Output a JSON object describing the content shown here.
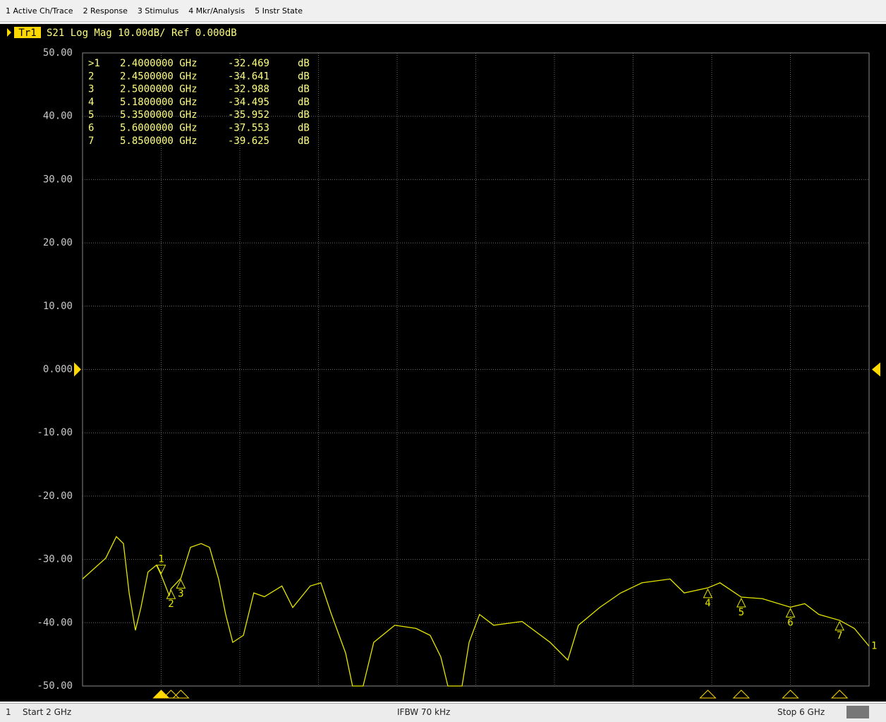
{
  "menu": [
    "1 Active Ch/Trace",
    "2 Response",
    "3 Stimulus",
    "4 Mkr/Analysis",
    "5 Instr State"
  ],
  "status_bar": {
    "channel": "1",
    "start": "Start 2 GHz",
    "ifbw": "IFBW 70 kHz",
    "stop": "Stop 6 GHz"
  },
  "chart_data": {
    "type": "line",
    "trace_name": "Tr1",
    "title": "S21 Log Mag 10.00dB/ Ref 0.000dB",
    "xlim": [
      2,
      6
    ],
    "ylim": [
      -50,
      50
    ],
    "xticks": [
      2,
      2.4,
      2.8,
      3.2,
      3.6,
      4,
      4.4,
      4.8,
      5.2,
      5.6,
      6
    ],
    "yticks": [
      {
        "value": 50,
        "label": "50.00"
      },
      {
        "value": 40,
        "label": "40.00"
      },
      {
        "value": 30,
        "label": "30.00"
      },
      {
        "value": 20,
        "label": "20.00"
      },
      {
        "value": 10,
        "label": "10.00"
      },
      {
        "value": 0,
        "label": "0.000"
      },
      {
        "value": -10,
        "label": "-10.00"
      },
      {
        "value": -20,
        "label": "-20.00"
      },
      {
        "value": -30,
        "label": "-30.00"
      },
      {
        "value": -40,
        "label": "-40.00"
      },
      {
        "value": -50,
        "label": "-50.00"
      }
    ],
    "grid": true,
    "ref_level": 0,
    "series": [
      {
        "name": "1",
        "color": "#e6e600",
        "x": [
          2.0,
          2.118,
          2.172,
          2.208,
          2.237,
          2.269,
          2.297,
          2.333,
          2.376,
          2.4,
          2.441,
          2.45,
          2.5,
          2.549,
          2.603,
          2.646,
          2.692,
          2.728,
          2.764,
          2.818,
          2.871,
          2.925,
          3.014,
          3.069,
          3.158,
          3.212,
          3.266,
          3.338,
          3.373,
          3.427,
          3.481,
          3.588,
          3.696,
          3.768,
          3.822,
          3.858,
          3.93,
          3.966,
          4.019,
          4.091,
          4.235,
          4.378,
          4.468,
          4.522,
          4.63,
          4.737,
          4.845,
          4.988,
          5.06,
          5.18,
          5.242,
          5.35,
          5.457,
          5.6,
          5.673,
          5.745,
          5.85,
          5.925,
          6.0
        ],
        "values": [
          -33.1,
          -29.8,
          -26.4,
          -27.5,
          -35.3,
          -41.2,
          -37.6,
          -32.0,
          -30.9,
          -32.469,
          -35.7,
          -34.641,
          -32.988,
          -28.1,
          -27.5,
          -28.1,
          -33.1,
          -38.7,
          -43.1,
          -42.0,
          -35.3,
          -35.9,
          -34.2,
          -37.6,
          -34.2,
          -33.7,
          -38.7,
          -44.8,
          -50,
          -50,
          -43.1,
          -40.4,
          -40.9,
          -42.0,
          -45.4,
          -50,
          -50,
          -43.1,
          -38.7,
          -40.4,
          -39.8,
          -43.1,
          -45.9,
          -40.4,
          -37.6,
          -35.3,
          -33.7,
          -33.1,
          -35.3,
          -34.495,
          -33.7,
          -35.952,
          -36.2,
          -37.553,
          -37.0,
          -38.7,
          -39.625,
          -40.9,
          -43.7
        ]
      }
    ],
    "markers": [
      {
        "label": ">1",
        "trace_label": "1",
        "x": 2.4,
        "x_label": "2.4000000 GHz",
        "value": -32.469,
        "unit": "dB"
      },
      {
        "label": "2",
        "trace_label": "2",
        "x": 2.45,
        "x_label": "2.4500000 GHz",
        "value": -34.641,
        "unit": "dB"
      },
      {
        "label": "3",
        "trace_label": "3",
        "x": 2.5,
        "x_label": "2.5000000 GHz",
        "value": -32.988,
        "unit": "dB"
      },
      {
        "label": "4",
        "trace_label": "4",
        "x": 5.18,
        "x_label": "5.1800000 GHz",
        "value": -34.495,
        "unit": "dB"
      },
      {
        "label": "5",
        "trace_label": "5",
        "x": 5.35,
        "x_label": "5.3500000 GHz",
        "value": -35.952,
        "unit": "dB"
      },
      {
        "label": "6",
        "trace_label": "6",
        "x": 5.6,
        "x_label": "5.6000000 GHz",
        "value": -37.553,
        "unit": "dB"
      },
      {
        "label": "7",
        "trace_label": "7",
        "x": 5.85,
        "x_label": "5.8500000 GHz",
        "value": -39.625,
        "unit": "dB"
      }
    ]
  }
}
